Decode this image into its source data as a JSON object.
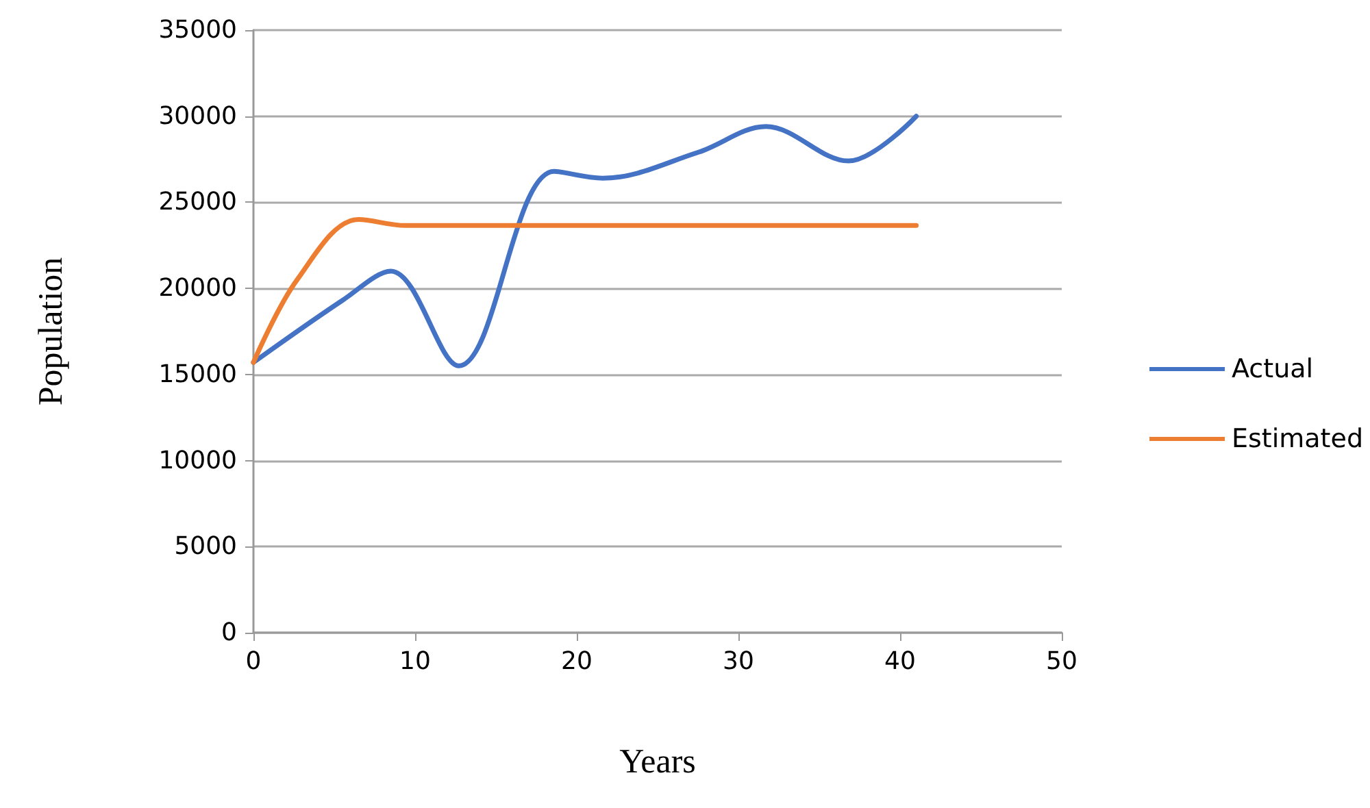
{
  "chart_data": {
    "type": "line",
    "xlabel": "Years",
    "ylabel": "Population",
    "xlim": [
      0,
      50
    ],
    "xticks": [
      0,
      10,
      20,
      30,
      40,
      50
    ],
    "ylim": [
      0,
      35000
    ],
    "yticks": [
      0,
      5000,
      10000,
      15000,
      20000,
      25000,
      30000,
      35000
    ],
    "grid": "y",
    "legend": "right",
    "marker": "none",
    "line_style": "solid",
    "series": [
      {
        "name": "Actual",
        "color": "#4472c4",
        "x": [
          0,
          5.5,
          8.5,
          12.7,
          18.6,
          21.6,
          27.5,
          31.7,
          36.8,
          41
        ],
        "values": [
          15700,
          19300,
          21000,
          15500,
          26800,
          26400,
          27900,
          29400,
          27400,
          30000
        ]
      },
      {
        "name": "Estimated",
        "color": "#ed7d31",
        "x": [
          0,
          2.7,
          6.5,
          9.4,
          41
        ],
        "values": [
          15700,
          20500,
          24000,
          23650,
          23650
        ]
      }
    ]
  }
}
